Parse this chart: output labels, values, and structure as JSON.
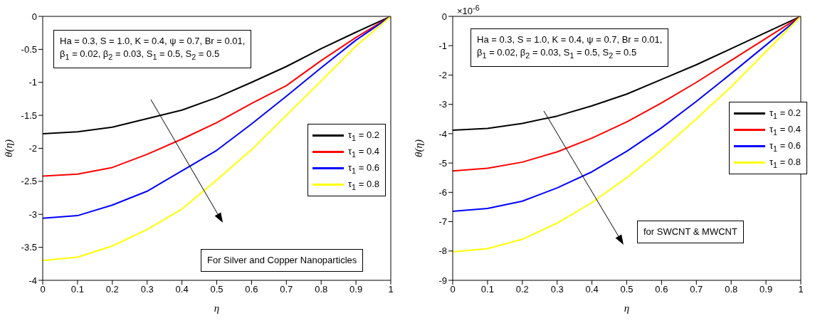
{
  "chart_data": [
    {
      "type": "line",
      "xlabel": "η",
      "ylabel": "θ(η)",
      "x": [
        0,
        0.1,
        0.2,
        0.3,
        0.4,
        0.5,
        0.6,
        0.7,
        0.8,
        0.9,
        1
      ],
      "xlim": [
        0,
        1
      ],
      "xticks": [
        0,
        0.1,
        0.2,
        0.3,
        0.4,
        0.5,
        0.6,
        0.7,
        0.8,
        0.9,
        1
      ],
      "ylim": [
        -4,
        0
      ],
      "yticks": [
        -4,
        -3.5,
        -3,
        -2.5,
        -2,
        -1.5,
        -1,
        -0.5,
        0
      ],
      "legend": "right",
      "annotations": [
        "Ha = 0.3, S = 1.0, K = 0.4, ψ = 0.7, Br = 0.01,",
        "β$_{1}$ = 0.02, β$_{2}$ = 0.03, S$_{1}$ = 0.5, S$_{2}$ = 0.5",
        "For Silver and Copper Nanoparticles"
      ],
      "series": [
        {
          "name": "τ$_{1}$ = 0.2",
          "color": "#000000",
          "values": [
            -1.78,
            -1.75,
            -1.68,
            -1.55,
            -1.42,
            -1.23,
            -1.0,
            -0.76,
            -0.49,
            -0.24,
            0
          ]
        },
        {
          "name": "τ$_{1}$ = 0.4",
          "color": "#ff0000",
          "values": [
            -2.42,
            -2.39,
            -2.29,
            -2.09,
            -1.86,
            -1.61,
            -1.32,
            -1.05,
            -0.67,
            -0.32,
            0
          ]
        },
        {
          "name": "τ$_{1}$ = 0.6",
          "color": "#0000ff",
          "values": [
            -3.06,
            -3.02,
            -2.86,
            -2.65,
            -2.34,
            -2.03,
            -1.63,
            -1.21,
            -0.78,
            -0.36,
            0
          ]
        },
        {
          "name": "τ$_{1}$ = 0.8",
          "color": "#ffff00",
          "values": [
            -3.7,
            -3.65,
            -3.48,
            -3.23,
            -2.92,
            -2.48,
            -2.02,
            -1.5,
            -0.98,
            -0.45,
            0
          ]
        }
      ]
    },
    {
      "type": "line",
      "xlabel": "η",
      "ylabel": "θ(η)",
      "x": [
        0,
        0.1,
        0.2,
        0.3,
        0.4,
        0.5,
        0.6,
        0.7,
        0.8,
        0.9,
        1
      ],
      "xlim": [
        0,
        1
      ],
      "xticks": [
        0,
        0.1,
        0.2,
        0.3,
        0.4,
        0.5,
        0.6,
        0.7,
        0.8,
        0.9,
        1
      ],
      "ylim": [
        -9,
        0
      ],
      "yticks": [
        -9,
        -8,
        -7,
        -6,
        -5,
        -4,
        -3,
        -2,
        -1,
        0
      ],
      "legend": "right",
      "annotations": [
        "×10$^{-6}$",
        "Ha = 0.3, S = 1.0, K = 0.4, ψ = 0.7, Br = 0.01,",
        "β$_{1}$ = 0.02, β$_{2}$ = 0.03, S$_{1}$ = 0.5, S$_{2}$ = 0.5",
        "for SWCNT & MWCNT"
      ],
      "series": [
        {
          "name": "τ$_{1}$ = 0.2",
          "color": "#000000",
          "values": [
            -3.88,
            -3.82,
            -3.65,
            -3.4,
            -3.05,
            -2.65,
            -2.15,
            -1.65,
            -1.1,
            -0.55,
            0
          ]
        },
        {
          "name": "τ$_{1}$ = 0.4",
          "color": "#ff0000",
          "values": [
            -5.27,
            -5.18,
            -4.97,
            -4.62,
            -4.15,
            -3.6,
            -2.95,
            -2.25,
            -1.5,
            -0.75,
            0
          ]
        },
        {
          "name": "τ$_{1}$ = 0.6",
          "color": "#0000ff",
          "values": [
            -6.65,
            -6.55,
            -6.3,
            -5.85,
            -5.3,
            -4.6,
            -3.8,
            -2.9,
            -1.95,
            -0.98,
            0
          ]
        },
        {
          "name": "τ$_{1}$ = 0.8",
          "color": "#ffff00",
          "values": [
            -8.03,
            -7.92,
            -7.6,
            -7.05,
            -6.35,
            -5.5,
            -4.55,
            -3.5,
            -2.4,
            -1.2,
            0
          ]
        }
      ]
    }
  ]
}
